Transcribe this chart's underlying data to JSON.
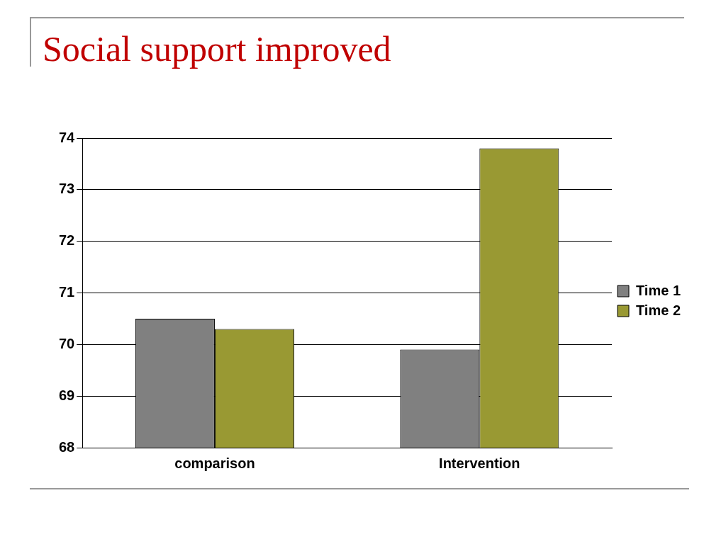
{
  "chart_data": {
    "type": "bar",
    "title": "Social support improved",
    "categories": [
      "comparison",
      "Intervention"
    ],
    "series": [
      {
        "name": "Time 1",
        "color": "#808080",
        "values": [
          70.5,
          69.9
        ]
      },
      {
        "name": "Time 2",
        "color": "#999933",
        "values": [
          70.3,
          73.8
        ]
      }
    ],
    "ylim": [
      68,
      74
    ],
    "yticks": [
      68,
      69,
      70,
      71,
      72,
      73,
      74
    ],
    "grid": "y",
    "legend": "right"
  }
}
